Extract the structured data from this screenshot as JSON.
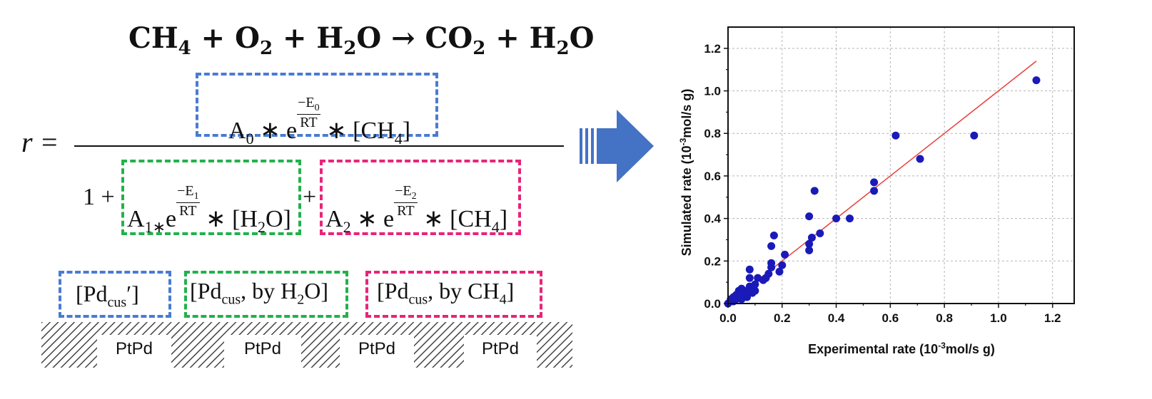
{
  "reaction": {
    "lhs1": "CH",
    "lhs1_sub": "4",
    "plus1": " + O",
    "lhs2_sub": "2",
    "plus2": " + H",
    "lhs3_sub": "2",
    "lhs3_tail": "O → CO",
    "rhs1_sub": "2",
    "plus3": " + H",
    "rhs2_sub": "2",
    "rhs2_tail": "O"
  },
  "rate": {
    "lhs": "r",
    "equals": "=",
    "numerator": {
      "A": "A",
      "A_sub": "0",
      "op1": " ∗ e",
      "exp_num": "−E",
      "exp_num_sub": "0",
      "exp_den": "RT",
      "op2": " ∗ [CH",
      "conc_sub": "4",
      "close": "]"
    },
    "denominator": {
      "one": "1 +",
      "term1": {
        "A": "A",
        "A_sub": "1∗",
        "op1": "e",
        "exp_num": "−E",
        "exp_num_sub": "1",
        "exp_den": "RT",
        "op2": " ∗ [H",
        "conc_sub": "2",
        "close": "O]"
      },
      "plus": "+",
      "term2": {
        "A": "A",
        "A_sub": "2",
        "op1": " ∗ e",
        "exp_num": "−E",
        "exp_num_sub": "2",
        "exp_den": "RT",
        "op2": " ∗ [CH",
        "conc_sub": "4",
        "close": "]"
      }
    }
  },
  "sites": [
    {
      "prefix": "[Pd",
      "sub": "cus",
      "suffix": "′]",
      "color": "#4a7bd2"
    },
    {
      "prefix": "[Pd",
      "sub": "cus",
      "suffix": ", by H",
      "sub2": "2",
      "suffix2": "O]",
      "color": "#22b14c"
    },
    {
      "prefix": "[Pd",
      "sub": "cus",
      "suffix": ", by CH",
      "sub2": "4",
      "suffix2": "]",
      "color": "#e8247a"
    }
  ],
  "surface": {
    "labels": [
      "PtPd",
      "PtPd",
      "PtPd",
      "PtPd"
    ]
  },
  "arrow": {
    "color": "#4472c4"
  },
  "chart_data": {
    "type": "scatter",
    "xlabel": "Experimental rate (10",
    "xlabel_sup": "-3",
    "xlabel_tail": "mol/s g)",
    "ylabel": "Simulated rate (10",
    "ylabel_sup": "-3",
    "ylabel_tail": "mol/s g)",
    "xlim": [
      0.0,
      1.28
    ],
    "ylim": [
      0.0,
      1.3
    ],
    "xticks": [
      "0.0",
      "0.2",
      "0.4",
      "0.6",
      "0.8",
      "1.0",
      "1.2"
    ],
    "yticks": [
      "0.0",
      "0.2",
      "0.4",
      "0.6",
      "0.8",
      "1.0",
      "1.2"
    ],
    "grid": true,
    "marker_color": "#1a1ab8",
    "line_color": "#e8413c",
    "fit_line": {
      "x": [
        0.0,
        1.14
      ],
      "y": [
        0.0,
        1.14
      ]
    },
    "points": [
      {
        "x": 1.14,
        "y": 1.05
      },
      {
        "x": 0.91,
        "y": 0.79
      },
      {
        "x": 0.71,
        "y": 0.68
      },
      {
        "x": 0.62,
        "y": 0.79
      },
      {
        "x": 0.54,
        "y": 0.57
      },
      {
        "x": 0.54,
        "y": 0.53
      },
      {
        "x": 0.45,
        "y": 0.4
      },
      {
        "x": 0.4,
        "y": 0.4
      },
      {
        "x": 0.34,
        "y": 0.33
      },
      {
        "x": 0.32,
        "y": 0.53
      },
      {
        "x": 0.31,
        "y": 0.31
      },
      {
        "x": 0.3,
        "y": 0.41
      },
      {
        "x": 0.3,
        "y": 0.28
      },
      {
        "x": 0.3,
        "y": 0.25
      },
      {
        "x": 0.21,
        "y": 0.23
      },
      {
        "x": 0.2,
        "y": 0.18
      },
      {
        "x": 0.19,
        "y": 0.15
      },
      {
        "x": 0.17,
        "y": 0.32
      },
      {
        "x": 0.16,
        "y": 0.27
      },
      {
        "x": 0.16,
        "y": 0.19
      },
      {
        "x": 0.16,
        "y": 0.17
      },
      {
        "x": 0.15,
        "y": 0.14
      },
      {
        "x": 0.14,
        "y": 0.12
      },
      {
        "x": 0.13,
        "y": 0.11
      },
      {
        "x": 0.11,
        "y": 0.12
      },
      {
        "x": 0.1,
        "y": 0.09
      },
      {
        "x": 0.1,
        "y": 0.06
      },
      {
        "x": 0.09,
        "y": 0.05
      },
      {
        "x": 0.08,
        "y": 0.16
      },
      {
        "x": 0.08,
        "y": 0.12
      },
      {
        "x": 0.08,
        "y": 0.08
      },
      {
        "x": 0.07,
        "y": 0.06
      },
      {
        "x": 0.07,
        "y": 0.03
      },
      {
        "x": 0.06,
        "y": 0.05
      },
      {
        "x": 0.05,
        "y": 0.07
      },
      {
        "x": 0.05,
        "y": 0.04
      },
      {
        "x": 0.05,
        "y": 0.02
      },
      {
        "x": 0.04,
        "y": 0.06
      },
      {
        "x": 0.04,
        "y": 0.03
      },
      {
        "x": 0.03,
        "y": 0.04
      },
      {
        "x": 0.03,
        "y": 0.02
      },
      {
        "x": 0.02,
        "y": 0.03
      },
      {
        "x": 0.02,
        "y": 0.01
      },
      {
        "x": 0.01,
        "y": 0.02
      },
      {
        "x": 0.01,
        "y": 0.01
      },
      {
        "x": 0.0,
        "y": 0.0
      }
    ]
  }
}
